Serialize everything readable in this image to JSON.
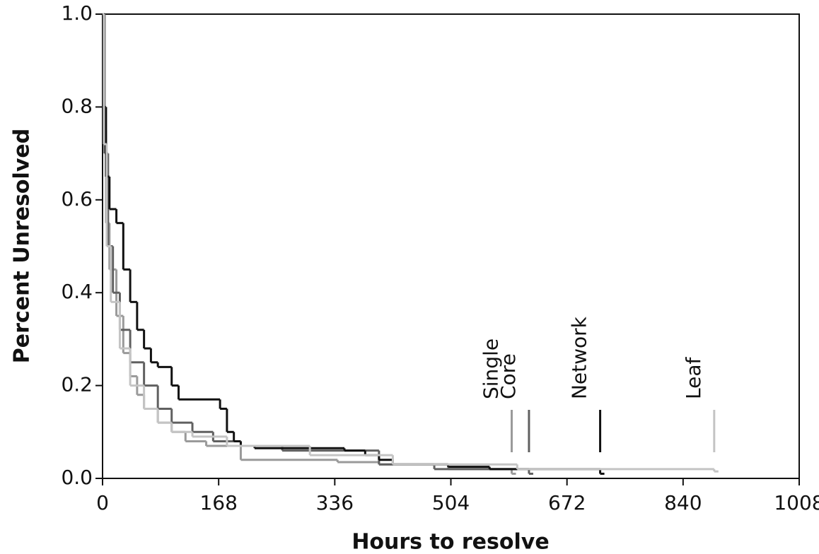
{
  "chart_data": {
    "type": "step",
    "xlabel": "Hours to resolve",
    "ylabel": "Percent Unresolved",
    "xlim": [
      0,
      1008
    ],
    "ylim": [
      0,
      1
    ],
    "xticks": [
      0,
      168,
      336,
      504,
      672,
      840,
      1008
    ],
    "yticks": [
      {
        "value": 0,
        "label": "0.0"
      },
      0.2,
      0.4,
      0.6,
      0.8,
      {
        "value": 1,
        "label": "1.0"
      }
    ],
    "series": [
      {
        "name": "Single",
        "color": "#9a9a9a",
        "x": [
          0,
          2,
          5,
          10,
          20,
          30,
          40,
          50,
          60,
          80,
          100,
          120,
          150,
          200,
          340,
          400,
          500,
          592
        ],
        "values": [
          1,
          0.75,
          0.55,
          0.45,
          0.35,
          0.27,
          0.22,
          0.18,
          0.15,
          0.12,
          0.1,
          0.08,
          0.07,
          0.04,
          0.035,
          0.03,
          0.02,
          0.01
        ]
      },
      {
        "name": "Core",
        "color": "#606060",
        "x": [
          0,
          3,
          8,
          15,
          25,
          40,
          60,
          80,
          100,
          130,
          160,
          200,
          260,
          400,
          480,
          617
        ],
        "values": [
          1,
          0.7,
          0.5,
          0.4,
          0.32,
          0.25,
          0.2,
          0.15,
          0.12,
          0.1,
          0.08,
          0.07,
          0.06,
          0.03,
          0.02,
          0.01
        ]
      },
      {
        "name": "Network",
        "color": "#111111",
        "x": [
          0,
          2,
          5,
          10,
          20,
          30,
          40,
          50,
          60,
          70,
          80,
          100,
          110,
          170,
          180,
          190,
          200,
          220,
          350,
          380,
          400,
          420,
          500,
          560,
          720
        ],
        "values": [
          1,
          0.8,
          0.65,
          0.58,
          0.55,
          0.45,
          0.38,
          0.32,
          0.28,
          0.25,
          0.24,
          0.2,
          0.17,
          0.15,
          0.1,
          0.08,
          0.07,
          0.065,
          0.06,
          0.05,
          0.04,
          0.03,
          0.025,
          0.02,
          0.01
        ]
      },
      {
        "name": "Leaf",
        "color": "#c4c4c4",
        "x": [
          0,
          2,
          6,
          12,
          25,
          40,
          60,
          80,
          100,
          130,
          180,
          300,
          420,
          600,
          885
        ],
        "values": [
          1,
          0.72,
          0.5,
          0.38,
          0.28,
          0.2,
          0.15,
          0.12,
          0.1,
          0.09,
          0.07,
          0.05,
          0.03,
          0.02,
          0.015
        ]
      }
    ]
  }
}
